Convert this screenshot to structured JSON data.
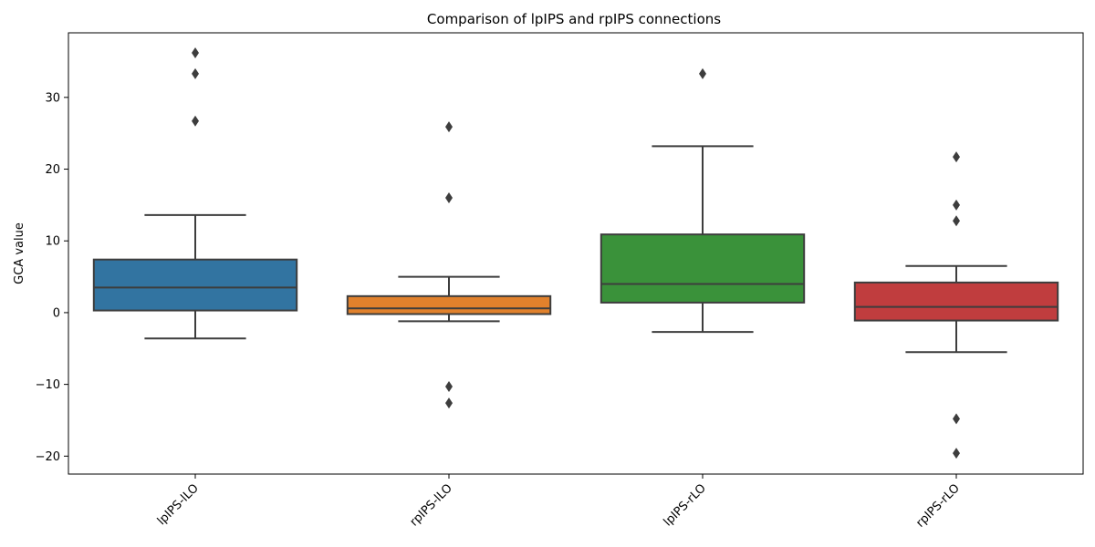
{
  "chart_data": {
    "type": "box",
    "title": "Comparison of lpIPS and rpIPS connections",
    "xlabel": "",
    "ylabel": "GCA value",
    "ylim": [
      -22.5,
      39
    ],
    "yticks": [
      -20,
      -10,
      0,
      10,
      20,
      30
    ],
    "ytick_labels": [
      "−20",
      "−10",
      "0",
      "10",
      "20",
      "30"
    ],
    "xtick_rotation_deg": 45,
    "grid": false,
    "categories": [
      "lpIPS-lLO",
      "rpIPS-lLO",
      "lpIPS-rLO",
      "rpIPS-rLO"
    ],
    "boxes": [
      {
        "name": "lpIPS-lLO",
        "color": "#3274a1",
        "whisker_low": -3.6,
        "q1": 0.3,
        "median": 3.5,
        "q3": 7.4,
        "whisker_high": 13.6,
        "outliers": [
          36.2,
          33.3,
          26.7
        ]
      },
      {
        "name": "rpIPS-lLO",
        "color": "#e1812c",
        "whisker_low": -1.2,
        "q1": -0.2,
        "median": 0.6,
        "q3": 2.3,
        "whisker_high": 5.0,
        "outliers": [
          25.9,
          16.0,
          -10.3,
          -12.6
        ]
      },
      {
        "name": "lpIPS-rLO",
        "color": "#3a923a",
        "whisker_low": -2.7,
        "q1": 1.4,
        "median": 4.0,
        "q3": 10.9,
        "whisker_high": 23.2,
        "outliers": [
          33.3
        ]
      },
      {
        "name": "rpIPS-rLO",
        "color": "#c03d3e",
        "whisker_low": -5.5,
        "q1": -1.1,
        "median": 0.8,
        "q3": 4.2,
        "whisker_high": 6.5,
        "outliers": [
          21.7,
          15.0,
          12.8,
          -14.8,
          -19.6
        ]
      }
    ],
    "line_color": "#3d3d3d"
  }
}
